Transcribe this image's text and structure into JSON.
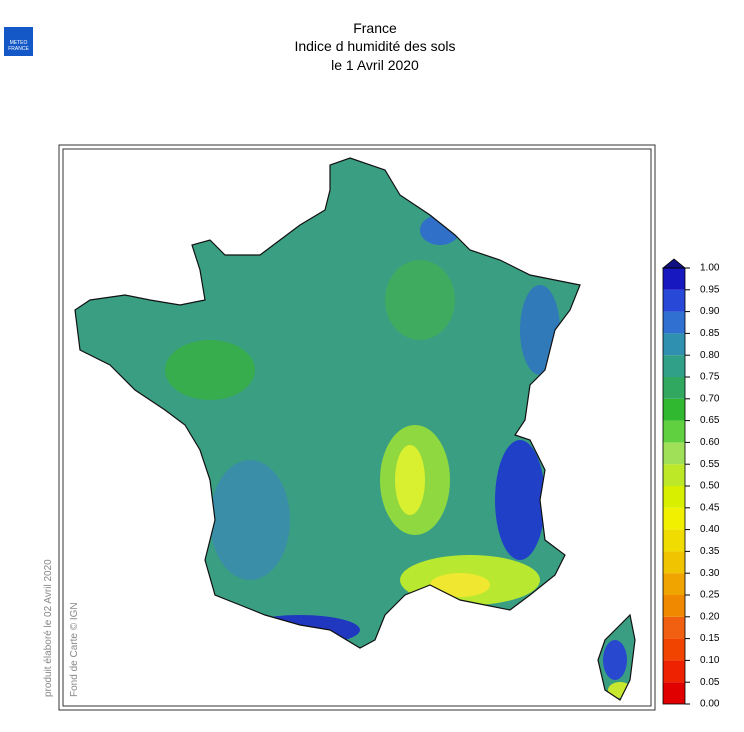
{
  "header": {
    "logo_lines": [
      "METEO",
      "FRANCE"
    ],
    "title_lines": [
      "France",
      "Indice d humidité des sols",
      "le 1 Avril 2020"
    ]
  },
  "credits": [
    "produit élaboré le 02 Avril 2020",
    "Fond de Carte © IGN"
  ],
  "legend": {
    "ticks": [
      {
        "value": 0,
        "label": "0.00"
      },
      {
        "value": 0.05,
        "label": "0.05"
      },
      {
        "value": 0.1,
        "label": "0.10"
      },
      {
        "value": 0.15,
        "label": "0.15"
      },
      {
        "value": 0.2,
        "label": "0.20"
      },
      {
        "value": 0.25,
        "label": "0.25"
      },
      {
        "value": 0.3,
        "label": "0.30"
      },
      {
        "value": 0.35,
        "label": "0.35"
      },
      {
        "value": 0.4,
        "label": "0.40"
      },
      {
        "value": 0.45,
        "label": "0.45"
      },
      {
        "value": 0.5,
        "label": "0.50"
      },
      {
        "value": 0.55,
        "label": "0.55"
      },
      {
        "value": 0.6,
        "label": "0.60"
      },
      {
        "value": 0.65,
        "label": "0.65"
      },
      {
        "value": 0.7,
        "label": "0.70"
      },
      {
        "value": 0.75,
        "label": "0.75"
      },
      {
        "value": 0.8,
        "label": "0.80"
      },
      {
        "value": 0.85,
        "label": "0.85"
      },
      {
        "value": 0.9,
        "label": "0.90"
      },
      {
        "value": 0.95,
        "label": "0.95"
      },
      {
        "value": 1,
        "label": "1.00"
      }
    ],
    "colors": [
      "#e00000",
      "#ee2200",
      "#f04400",
      "#f06010",
      "#f08800",
      "#f0a400",
      "#f0c400",
      "#f0dc00",
      "#f0f000",
      "#d8f000",
      "#bce828",
      "#a0e058",
      "#60d040",
      "#30b830",
      "#30a860",
      "#30a088",
      "#3090b0",
      "#3070d0",
      "#2848d8",
      "#1818c0"
    ],
    "over_color": "#101080"
  }
}
